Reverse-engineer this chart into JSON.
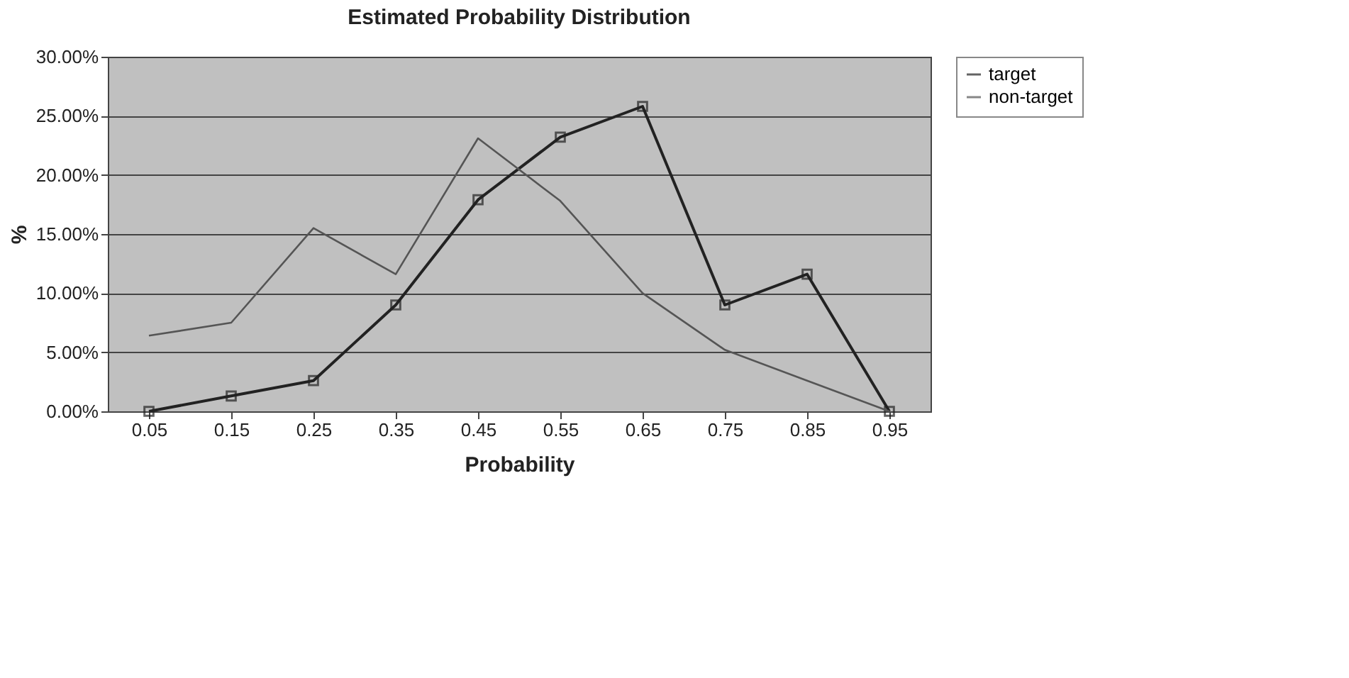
{
  "chart_data": {
    "type": "line",
    "title": "Estimated Probability Distribution",
    "xlabel": "Probability",
    "ylabel": "%",
    "categories": [
      "0.05",
      "0.15",
      "0.25",
      "0.35",
      "0.45",
      "0.55",
      "0.65",
      "0.75",
      "0.85",
      "0.95"
    ],
    "series": [
      {
        "name": "target",
        "color": "#222222",
        "marker": "square",
        "values": [
          0,
          1.3,
          2.6,
          9.0,
          17.9,
          23.2,
          25.8,
          9.0,
          11.6,
          0
        ]
      },
      {
        "name": "non-target",
        "color": "#555555",
        "marker": "none",
        "values": [
          6.4,
          7.5,
          15.5,
          11.6,
          23.1,
          17.8,
          10.0,
          5.2,
          2.6,
          0
        ]
      }
    ],
    "ylim": [
      0,
      30
    ],
    "yticks": [
      {
        "value": 0,
        "label": "0.00%"
      },
      {
        "value": 5,
        "label": "5.00%"
      },
      {
        "value": 10,
        "label": "10.00%"
      },
      {
        "value": 15,
        "label": "15.00%"
      },
      {
        "value": 20,
        "label": "20.00%"
      },
      {
        "value": 25,
        "label": "25.00%"
      },
      {
        "value": 30,
        "label": "30.00%"
      }
    ],
    "grid": "y",
    "legend": "right"
  }
}
